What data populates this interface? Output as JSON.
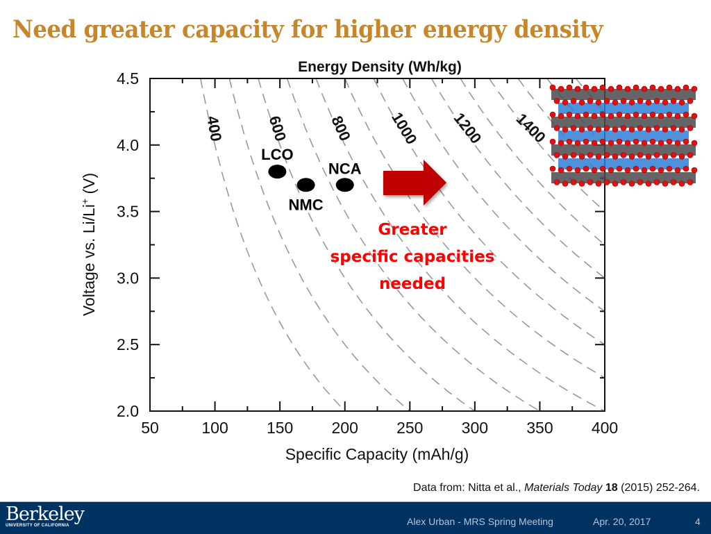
{
  "slide": {
    "title": "Need greater capacity for higher energy density",
    "citation": {
      "prefix": "Data from: Nitta et al., ",
      "journal": "Materials Today",
      "volume": "18",
      "suffix": " (2015) 252-264."
    },
    "footer": {
      "logo_word": "Berkeley",
      "logo_sub": "UNIVERSITY OF CALIFORNIA",
      "presenter": "Alex Urban - MRS Spring Meeting",
      "date": "Apr. 20, 2017",
      "page_number": "4"
    },
    "colors": {
      "title": "#c7862a",
      "footer_bg": "#003262",
      "annotation": "#ff0000",
      "arrow": "#c00000",
      "curve": "#999999"
    }
  },
  "chart_data": {
    "type": "scatter",
    "title": "Energy Density (Wh/kg)",
    "xlabel": "Specific Capacity (mAh/g)",
    "ylabel": "Voltage vs. Li/Li+ (V)",
    "xlim": [
      50,
      400
    ],
    "ylim": [
      2.0,
      4.5
    ],
    "x_ticks": [
      50,
      100,
      150,
      200,
      250,
      300,
      350,
      400
    ],
    "x_minor_ticks": [
      75,
      125,
      175,
      225,
      275,
      325,
      375
    ],
    "y_ticks": [
      2.0,
      2.5,
      3.0,
      3.5,
      4.0,
      4.5
    ],
    "y_minor_ticks": [
      2.25,
      2.75,
      3.25,
      3.75,
      4.25
    ],
    "grid": false,
    "iso_energy_curves": {
      "relation": "energy = voltage * capacity",
      "values": [
        400,
        500,
        600,
        700,
        800,
        900,
        1000,
        1100,
        1200,
        1300,
        1400,
        1500,
        1600,
        1700,
        1800
      ],
      "labeled": [
        400,
        600,
        800,
        1000,
        1200,
        1400
      ],
      "style": "dashed"
    },
    "points": [
      {
        "label": "LCO",
        "capacity": 148,
        "voltage": 3.8
      },
      {
        "label": "NMC",
        "capacity": 170,
        "voltage": 3.7
      },
      {
        "label": "NCA",
        "capacity": 200,
        "voltage": 3.7
      }
    ],
    "annotations": [
      {
        "text": [
          "Greater",
          "specific capacities",
          "needed"
        ],
        "color": "#ff0000"
      },
      {
        "type": "arrow",
        "direction": "right",
        "color": "#c00000"
      }
    ],
    "inset_image": "layered oxide crystal structure (gray TM-O layers, blue Li-O layers, red O atoms)"
  }
}
